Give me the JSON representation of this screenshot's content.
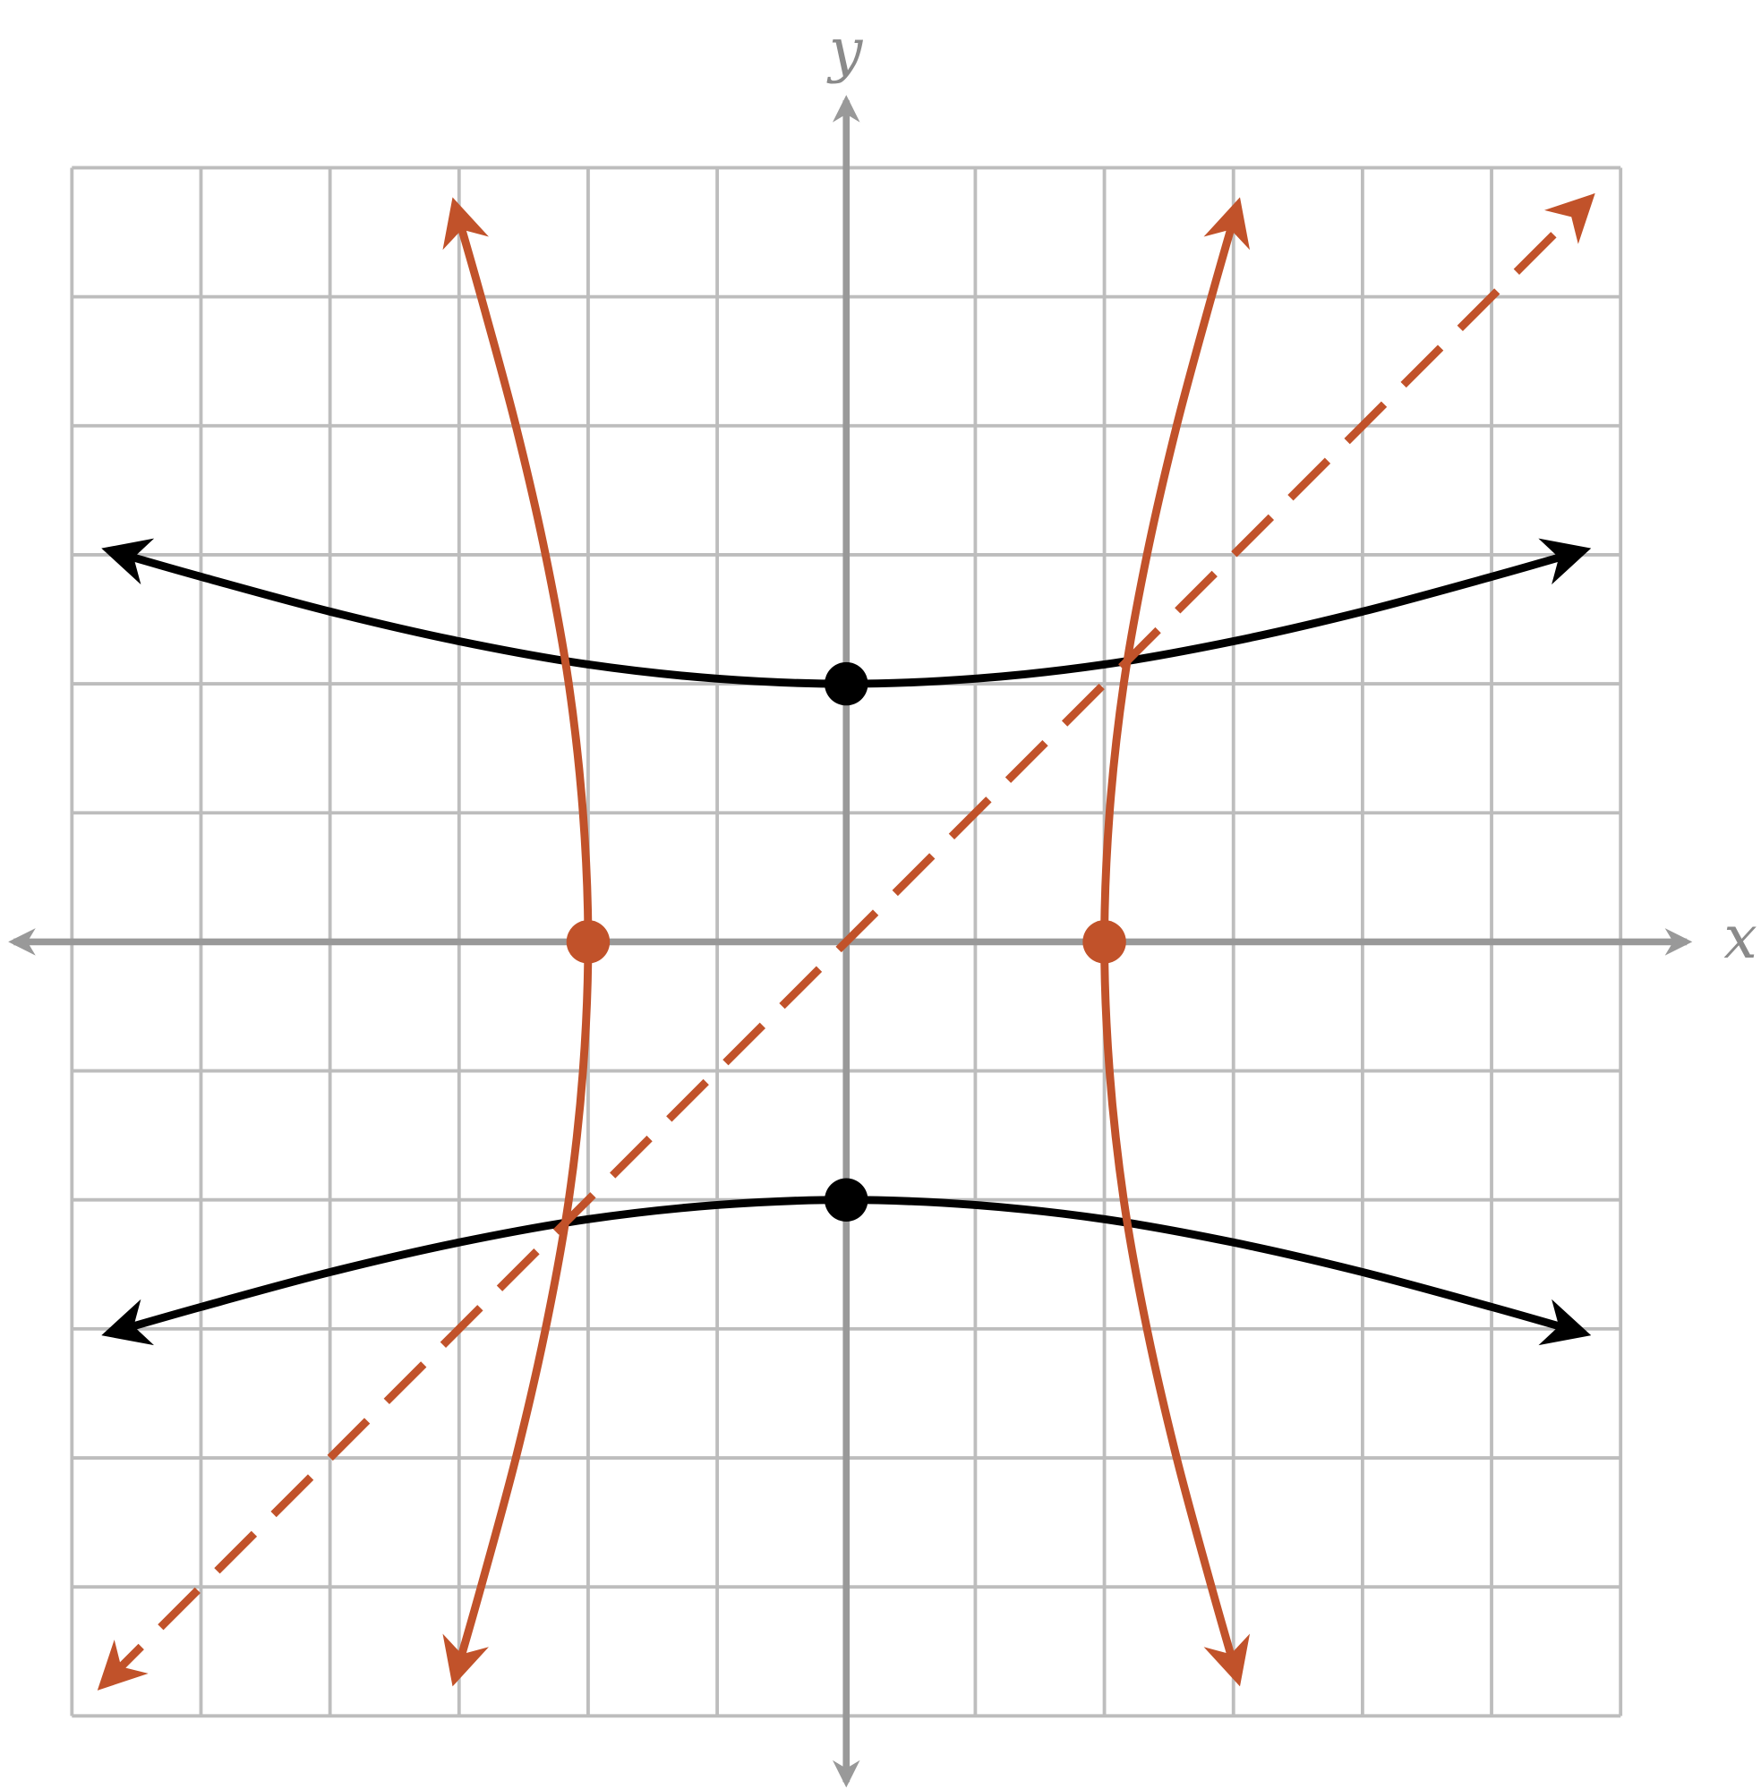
{
  "chart_data": {
    "type": "line",
    "x_label": "x",
    "y_label": "y",
    "xlim": [
      -6,
      6
    ],
    "ylim": [
      -6,
      6
    ],
    "xticks": [
      -6,
      -5,
      -4,
      -3,
      -2,
      -1,
      0,
      1,
      2,
      3,
      4,
      5,
      6
    ],
    "yticks": [
      -6,
      -5,
      -4,
      -3,
      -2,
      -1,
      0,
      1,
      2,
      3,
      4,
      5,
      6
    ],
    "grid": true,
    "series": [
      {
        "color": "#000000",
        "dashed": false,
        "x": [
          -5.7,
          -5,
          -4,
          -3,
          -2,
          -1,
          0,
          1,
          2,
          3,
          4,
          5,
          5.7
        ],
        "values": [
          3.03,
          2.83,
          2.56,
          2.33,
          2.15,
          2.04,
          2,
          2.04,
          2.15,
          2.33,
          2.56,
          2.83,
          3.03
        ]
      },
      {
        "color": "#000000",
        "dashed": false,
        "x": [
          -5.7,
          -5,
          -4,
          -3,
          -2,
          -1,
          0,
          1,
          2,
          3,
          4,
          5,
          5.7
        ],
        "values": [
          -3.03,
          -2.83,
          -2.56,
          -2.33,
          -2.15,
          -2.04,
          -2,
          -2.04,
          -2.15,
          -2.33,
          -2.56,
          -2.83,
          -3.03
        ]
      },
      {
        "color": "#c1522a",
        "dashed": false,
        "x": [
          3.03,
          2.83,
          2.56,
          2.33,
          2.15,
          2.04,
          2,
          2.04,
          2.15,
          2.33,
          2.56,
          2.83,
          3.03
        ],
        "values": [
          -5.7,
          -5,
          -4,
          -3,
          -2,
          -1,
          0,
          1,
          2,
          3,
          4,
          5,
          5.7
        ]
      },
      {
        "color": "#c1522a",
        "dashed": false,
        "x": [
          -3.03,
          -2.83,
          -2.56,
          -2.33,
          -2.15,
          -2.04,
          -2,
          -2.04,
          -2.15,
          -2.33,
          -2.56,
          -2.83,
          -3.03
        ],
        "values": [
          -5.7,
          -5,
          -4,
          -3,
          -2,
          -1,
          0,
          1,
          2,
          3,
          4,
          5,
          5.7
        ]
      },
      {
        "color": "#c1522a",
        "dashed": true,
        "x": [
          -5.75,
          5.75
        ],
        "values": [
          -5.75,
          5.75
        ]
      }
    ],
    "points": [
      {
        "x": 0,
        "y": 2,
        "color": "#000000"
      },
      {
        "x": 0,
        "y": -2,
        "color": "#000000"
      },
      {
        "x": -2,
        "y": 0,
        "color": "#c1522a"
      },
      {
        "x": 2,
        "y": 0,
        "color": "#c1522a"
      }
    ]
  }
}
